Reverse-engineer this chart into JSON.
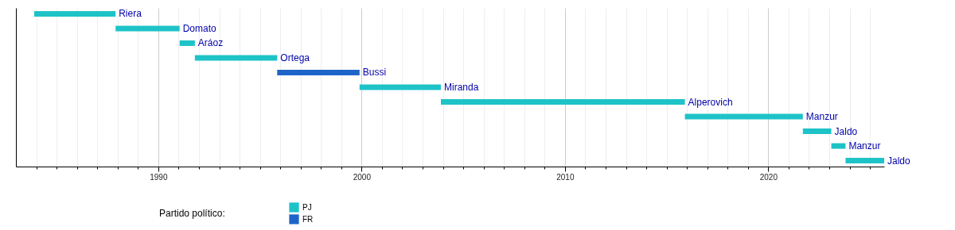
{
  "chart_data": {
    "type": "bar",
    "orientation": "horizontal",
    "categories": [
      "Riera",
      "Domato",
      "Aráoz",
      "Ortega",
      "Bussi",
      "Miranda",
      "Alperovich",
      "Manzur",
      "Jaldo",
      "Manzur",
      "Jaldo"
    ],
    "series": [
      {
        "name": "PJ",
        "color": "#1ec3c8",
        "base": [
          1983.9,
          1987.9,
          1991.05,
          1991.8,
          null,
          1999.9,
          2003.9,
          2015.9,
          2021.7,
          2023.1,
          2023.8
        ],
        "values": [
          4.0,
          3.15,
          0.75,
          4.05,
          null,
          4.0,
          12.0,
          5.8,
          1.4,
          0.7,
          1.9
        ]
      },
      {
        "name": "FR",
        "color": "#1e64c8",
        "base": [
          null,
          null,
          null,
          null,
          1995.85,
          null,
          null,
          null,
          null,
          null,
          null
        ],
        "values": [
          null,
          null,
          null,
          null,
          4.05,
          null,
          null,
          null,
          null,
          null,
          null
        ]
      }
    ],
    "legend_title": "Partido político:",
    "legend": "bottom left",
    "xlim": [
      1983,
      2025.7
    ],
    "xticks": [
      {
        "value": 1984,
        "label": null
      },
      {
        "value": 1985,
        "label": null
      },
      {
        "value": 1986,
        "label": null
      },
      {
        "value": 1987,
        "label": null
      },
      {
        "value": 1988,
        "label": null
      },
      {
        "value": 1989,
        "label": null
      },
      1990,
      {
        "value": 1991,
        "label": null
      },
      {
        "value": 1992,
        "label": null
      },
      {
        "value": 1993,
        "label": null
      },
      {
        "value": 1994,
        "label": null
      },
      {
        "value": 1995,
        "label": null
      },
      {
        "value": 1996,
        "label": null
      },
      {
        "value": 1997,
        "label": null
      },
      {
        "value": 1998,
        "label": null
      },
      {
        "value": 1999,
        "label": null
      },
      2000,
      {
        "value": 2001,
        "label": null
      },
      {
        "value": 2002,
        "label": null
      },
      {
        "value": 2003,
        "label": null
      },
      {
        "value": 2004,
        "label": null
      },
      {
        "value": 2005,
        "label": null
      },
      {
        "value": 2006,
        "label": null
      },
      {
        "value": 2007,
        "label": null
      },
      {
        "value": 2008,
        "label": null
      },
      {
        "value": 2009,
        "label": null
      },
      2010,
      {
        "value": 2011,
        "label": null
      },
      {
        "value": 2012,
        "label": null
      },
      {
        "value": 2013,
        "label": null
      },
      {
        "value": 2014,
        "label": null
      },
      {
        "value": 2015,
        "label": null
      },
      {
        "value": 2016,
        "label": null
      },
      {
        "value": 2017,
        "label": null
      },
      {
        "value": 2018,
        "label": null
      },
      {
        "value": 2019,
        "label": null
      },
      2020,
      {
        "value": 2021,
        "label": null
      },
      {
        "value": 2022,
        "label": null
      },
      {
        "value": 2023,
        "label": null
      },
      {
        "value": 2024,
        "label": null
      },
      {
        "value": 2025,
        "label": null
      }
    ],
    "grid": "x",
    "tick_labels": "x"
  }
}
